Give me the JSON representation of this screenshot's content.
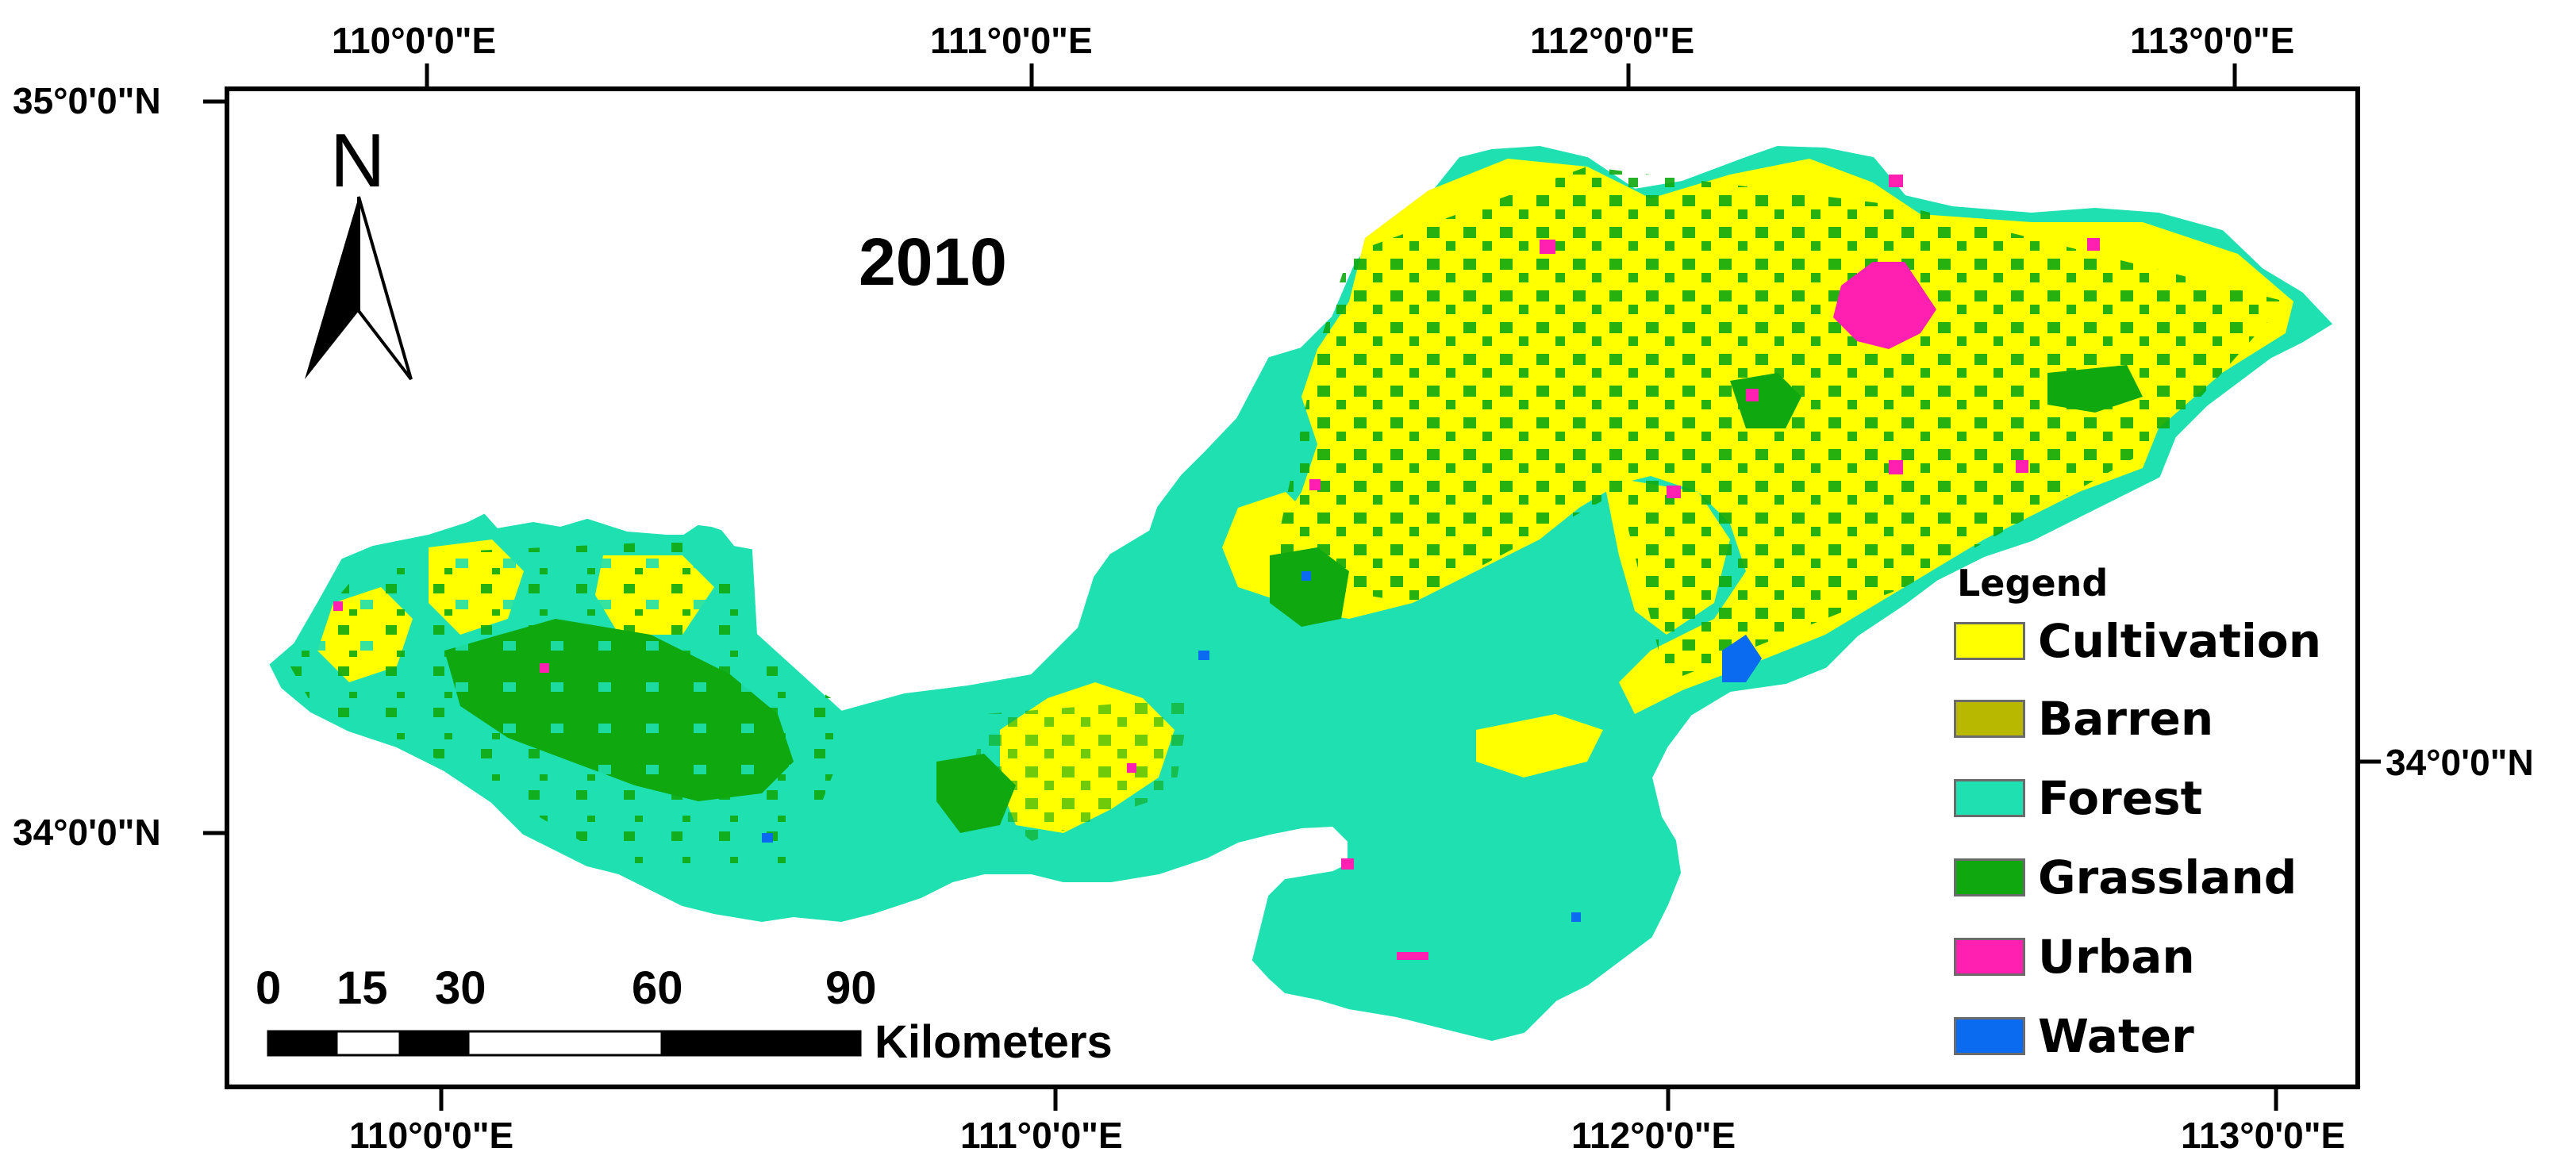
{
  "map": {
    "year": "2010",
    "north_arrow_label": "N",
    "top_longitudes": [
      "110°0'0\"E",
      "111°0'0\"E",
      "112°0'0\"E",
      "113°0'0\"E"
    ],
    "bottom_longitudes": [
      "110°0'0\"E",
      "111°0'0\"E",
      "112°0'0\"E",
      "113°0'0\"E"
    ],
    "left_latitudes": [
      "35°0'0\"N",
      "34°0'0\"N"
    ],
    "right_latitudes": [
      "34°0'0\"N"
    ],
    "scale_bar": {
      "ticks": [
        "0",
        "15",
        "30",
        "60",
        "90"
      ],
      "unit": "Kilometers"
    }
  },
  "legend": {
    "title": "Legend",
    "items": [
      {
        "label": "Cultivation",
        "color": "#FFFF00"
      },
      {
        "label": "Barren",
        "color": "#B8B800"
      },
      {
        "label": "Forest",
        "color": "#1FE0B0"
      },
      {
        "label": "Grassland",
        "color": "#0FA80F"
      },
      {
        "label": "Urban",
        "color": "#FF1FB0"
      },
      {
        "label": "Water",
        "color": "#0A6AF0"
      }
    ]
  }
}
